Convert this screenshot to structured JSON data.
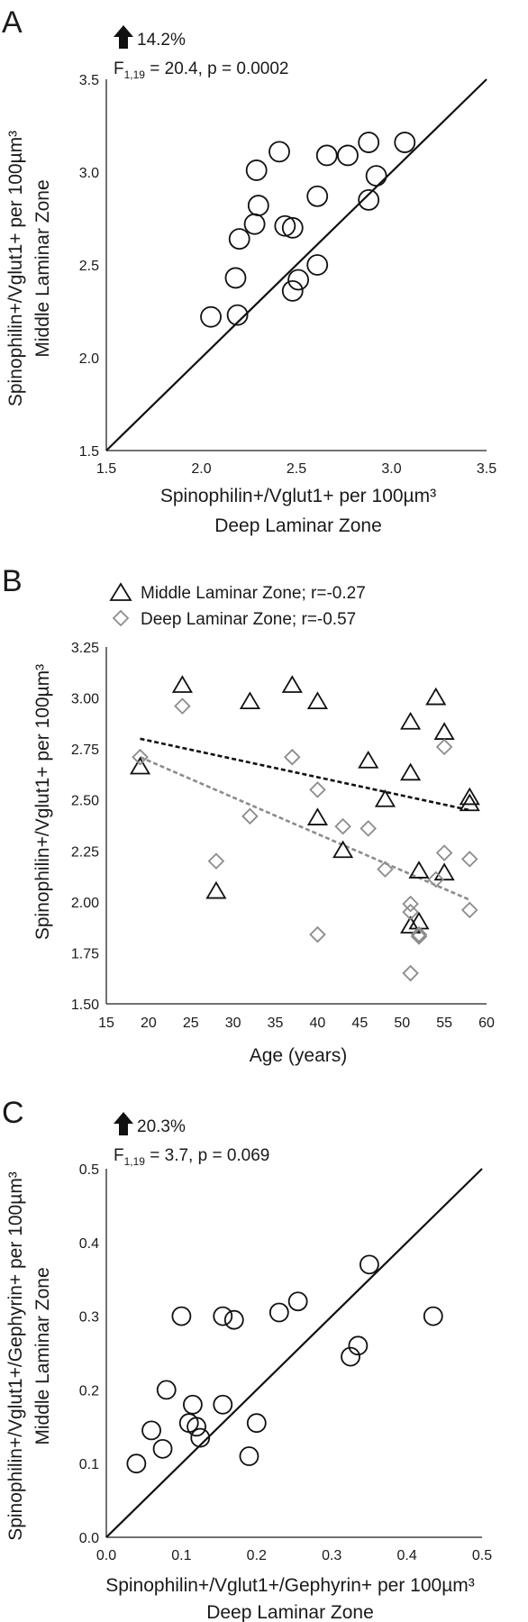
{
  "chart_data": [
    {
      "panel": "A",
      "type": "scatter",
      "annotation_arrow": "up-arrow-icon",
      "annotation_pct": "14.2%",
      "stat_F": "F",
      "stat_df": "1,19",
      "stat_rest": " = 20.4, p = 0.0002",
      "xlabel_lines": [
        "Spinophilin+/Vglut1+ per 100µm³",
        "Deep Laminar Zone"
      ],
      "ylabel_lines": [
        "Spinophilin+/Vglut1+ per 100µm³",
        "Middle Laminar Zone"
      ],
      "xlim": [
        1.5,
        3.5
      ],
      "ylim": [
        1.5,
        3.5
      ],
      "xticks": [
        "1.5",
        "2.0",
        "2.5",
        "3.0",
        "3.5"
      ],
      "yticks": [
        "1.5",
        "2.0",
        "2.5",
        "3.0",
        "3.5"
      ],
      "identity_line": true,
      "grid": false,
      "points": [
        {
          "x": 2.05,
          "y": 2.22
        },
        {
          "x": 2.19,
          "y": 2.23
        },
        {
          "x": 2.18,
          "y": 2.43
        },
        {
          "x": 2.2,
          "y": 2.64
        },
        {
          "x": 2.28,
          "y": 2.72
        },
        {
          "x": 2.3,
          "y": 2.82
        },
        {
          "x": 2.29,
          "y": 3.01
        },
        {
          "x": 2.41,
          "y": 3.11
        },
        {
          "x": 2.44,
          "y": 2.71
        },
        {
          "x": 2.48,
          "y": 2.7
        },
        {
          "x": 2.48,
          "y": 2.36
        },
        {
          "x": 2.51,
          "y": 2.42
        },
        {
          "x": 2.61,
          "y": 2.87
        },
        {
          "x": 2.61,
          "y": 2.5
        },
        {
          "x": 2.66,
          "y": 3.09
        },
        {
          "x": 2.77,
          "y": 3.09
        },
        {
          "x": 2.88,
          "y": 3.16
        },
        {
          "x": 2.88,
          "y": 2.85
        },
        {
          "x": 2.92,
          "y": 2.98
        },
        {
          "x": 3.07,
          "y": 3.16
        }
      ]
    },
    {
      "panel": "B",
      "type": "scatter",
      "xlabel": "Age (years)",
      "ylabel": "Spinophilin+/Vglut1+ per 100µm³",
      "xlim": [
        15,
        60
      ],
      "ylim": [
        1.5,
        3.25
      ],
      "xticks": [
        "15",
        "20",
        "25",
        "30",
        "35",
        "40",
        "45",
        "50",
        "55",
        "60"
      ],
      "yticks": [
        "1.50",
        "1.75",
        "2.00",
        "2.25",
        "2.50",
        "2.75",
        "3.00",
        "3.25"
      ],
      "legend_position": "top-left",
      "grid": false,
      "series": [
        {
          "name": "Middle Laminar Zone; r=-0.27",
          "marker": "triangle",
          "color": "#111111",
          "trendline": {
            "x": [
              19,
              58
            ],
            "y": [
              2.8,
              2.45
            ],
            "color": "#111111"
          },
          "points": [
            {
              "x": 19,
              "y": 2.66
            },
            {
              "x": 24,
              "y": 3.06
            },
            {
              "x": 28,
              "y": 2.05
            },
            {
              "x": 32,
              "y": 2.98
            },
            {
              "x": 37,
              "y": 3.06
            },
            {
              "x": 40,
              "y": 2.98
            },
            {
              "x": 40,
              "y": 2.41
            },
            {
              "x": 43,
              "y": 2.25
            },
            {
              "x": 46,
              "y": 2.69
            },
            {
              "x": 48,
              "y": 2.5
            },
            {
              "x": 51,
              "y": 2.88
            },
            {
              "x": 51,
              "y": 2.63
            },
            {
              "x": 52,
              "y": 2.15
            },
            {
              "x": 51,
              "y": 1.88
            },
            {
              "x": 52,
              "y": 1.9
            },
            {
              "x": 54,
              "y": 3.0
            },
            {
              "x": 55,
              "y": 2.83
            },
            {
              "x": 55,
              "y": 2.14
            },
            {
              "x": 58,
              "y": 2.51
            },
            {
              "x": 58,
              "y": 2.48
            }
          ]
        },
        {
          "name": "Deep Laminar Zone; r=-0.57",
          "marker": "diamond",
          "color": "#8c8c8c",
          "trendline": {
            "x": [
              19,
              58
            ],
            "y": [
              2.71,
              2.01
            ],
            "color": "#8c8c8c"
          },
          "points": [
            {
              "x": 19,
              "y": 2.71
            },
            {
              "x": 24,
              "y": 2.96
            },
            {
              "x": 28,
              "y": 2.2
            },
            {
              "x": 32,
              "y": 2.42
            },
            {
              "x": 37,
              "y": 2.71
            },
            {
              "x": 40,
              "y": 2.55
            },
            {
              "x": 40,
              "y": 1.84
            },
            {
              "x": 43,
              "y": 2.37
            },
            {
              "x": 46,
              "y": 2.36
            },
            {
              "x": 48,
              "y": 2.16
            },
            {
              "x": 51,
              "y": 1.99
            },
            {
              "x": 51,
              "y": 1.95
            },
            {
              "x": 51,
              "y": 1.65
            },
            {
              "x": 52,
              "y": 1.83
            },
            {
              "x": 52,
              "y": 1.84
            },
            {
              "x": 54,
              "y": 2.11
            },
            {
              "x": 55,
              "y": 2.76
            },
            {
              "x": 55,
              "y": 2.24
            },
            {
              "x": 58,
              "y": 2.21
            },
            {
              "x": 58,
              "y": 1.96
            }
          ]
        }
      ]
    },
    {
      "panel": "C",
      "type": "scatter",
      "annotation_arrow": "up-arrow-icon",
      "annotation_pct": "20.3%",
      "stat_F": "F",
      "stat_df": "1,19",
      "stat_rest": " = 3.7, p = 0.069",
      "xlabel_lines": [
        "Spinophilin+/Vglut1+/Gephyrin+ per 100µm³",
        "Deep Laminar Zone"
      ],
      "ylabel_lines": [
        "Spinophilin+/Vglut1+/Gephyrin+ per 100µm³",
        "Middle Laminar Zone"
      ],
      "xlim": [
        0,
        0.5
      ],
      "ylim": [
        0,
        0.5
      ],
      "xticks": [
        "0.0",
        "0.1",
        "0.2",
        "0.3",
        "0.4",
        "0.5"
      ],
      "yticks": [
        "0.0",
        "0.1",
        "0.2",
        "0.3",
        "0.4",
        "0.5"
      ],
      "identity_line": true,
      "grid": false,
      "points": [
        {
          "x": 0.04,
          "y": 0.1
        },
        {
          "x": 0.06,
          "y": 0.145
        },
        {
          "x": 0.075,
          "y": 0.12
        },
        {
          "x": 0.08,
          "y": 0.2
        },
        {
          "x": 0.1,
          "y": 0.3
        },
        {
          "x": 0.11,
          "y": 0.155
        },
        {
          "x": 0.115,
          "y": 0.18
        },
        {
          "x": 0.12,
          "y": 0.15
        },
        {
          "x": 0.125,
          "y": 0.135
        },
        {
          "x": 0.155,
          "y": 0.3
        },
        {
          "x": 0.155,
          "y": 0.18
        },
        {
          "x": 0.17,
          "y": 0.295
        },
        {
          "x": 0.19,
          "y": 0.11
        },
        {
          "x": 0.2,
          "y": 0.155
        },
        {
          "x": 0.23,
          "y": 0.305
        },
        {
          "x": 0.255,
          "y": 0.32
        },
        {
          "x": 0.325,
          "y": 0.245
        },
        {
          "x": 0.335,
          "y": 0.26
        },
        {
          "x": 0.35,
          "y": 0.37
        },
        {
          "x": 0.435,
          "y": 0.3
        }
      ]
    }
  ]
}
